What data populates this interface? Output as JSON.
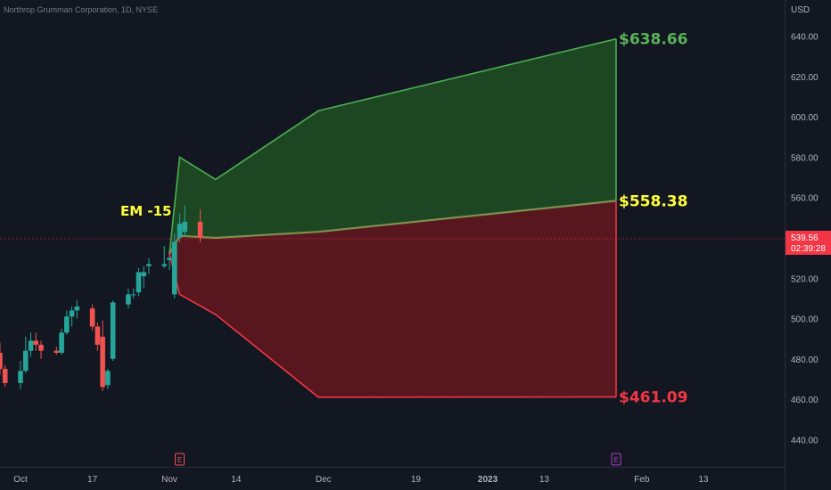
{
  "header": {
    "title": "Northrop Grumman Corporation, 1D, NYSE"
  },
  "chart_data": {
    "type": "candlestick",
    "title": "Northrop Grumman Corporation, 1D, NYSE",
    "currency": "USD",
    "ylim": [
      430,
      652
    ],
    "y_ticks": [
      "440.00",
      "460.00",
      "480.00",
      "500.00",
      "520.00",
      "540.00",
      "560.00",
      "580.00",
      "600.00",
      "620.00",
      "640.00"
    ],
    "x_ticks": [
      {
        "label": "Oct",
        "date": "2022-10-03"
      },
      {
        "label": "17",
        "date": "2022-10-17"
      },
      {
        "label": "Nov",
        "date": "2022-11-01"
      },
      {
        "label": "14",
        "date": "2022-11-14"
      },
      {
        "label": "Dec",
        "date": "2022-12-01"
      },
      {
        "label": "19",
        "date": "2022-12-19"
      },
      {
        "label": "2023",
        "date": "2023-01-02"
      },
      {
        "label": "13",
        "date": "2023-01-13"
      },
      {
        "label": "Feb",
        "date": "2023-02-01"
      },
      {
        "label": "13",
        "date": "2023-02-13"
      }
    ],
    "candles": [
      {
        "date": "2022-09-29",
        "o": 483,
        "h": 488,
        "l": 472,
        "c": 475
      },
      {
        "date": "2022-09-30",
        "o": 475,
        "h": 477,
        "l": 466,
        "c": 468
      },
      {
        "date": "2022-10-03",
        "o": 468,
        "h": 479,
        "l": 465,
        "c": 474
      },
      {
        "date": "2022-10-04",
        "o": 474,
        "h": 491,
        "l": 473,
        "c": 484
      },
      {
        "date": "2022-10-05",
        "o": 484,
        "h": 493,
        "l": 481,
        "c": 489
      },
      {
        "date": "2022-10-06",
        "o": 489,
        "h": 493,
        "l": 484,
        "c": 487
      },
      {
        "date": "2022-10-07",
        "o": 487,
        "h": 489,
        "l": 480,
        "c": 484
      },
      {
        "date": "2022-10-10",
        "o": 484,
        "h": 486,
        "l": 482,
        "c": 483
      },
      {
        "date": "2022-10-11",
        "o": 483,
        "h": 495,
        "l": 482,
        "c": 493
      },
      {
        "date": "2022-10-12",
        "o": 493,
        "h": 504,
        "l": 492,
        "c": 501
      },
      {
        "date": "2022-10-13",
        "o": 501,
        "h": 506,
        "l": 496,
        "c": 504
      },
      {
        "date": "2022-10-14",
        "o": 504,
        "h": 509,
        "l": 500,
        "c": 506
      },
      {
        "date": "2022-10-17",
        "o": 505,
        "h": 507,
        "l": 494,
        "c": 496
      },
      {
        "date": "2022-10-18",
        "o": 496,
        "h": 498,
        "l": 484,
        "c": 487
      },
      {
        "date": "2022-10-19",
        "o": 491,
        "h": 499,
        "l": 464,
        "c": 466
      },
      {
        "date": "2022-10-20",
        "o": 467,
        "h": 475,
        "l": 465,
        "c": 474
      },
      {
        "date": "2022-10-21",
        "o": 480,
        "h": 509,
        "l": 479,
        "c": 508
      },
      {
        "date": "2022-10-24",
        "o": 507,
        "h": 515,
        "l": 505,
        "c": 512
      },
      {
        "date": "2022-10-25",
        "o": 512,
        "h": 515,
        "l": 510,
        "c": 512
      },
      {
        "date": "2022-10-26",
        "o": 513,
        "h": 525,
        "l": 511,
        "c": 523
      },
      {
        "date": "2022-10-27",
        "o": 521,
        "h": 526,
        "l": 515,
        "c": 523
      },
      {
        "date": "2022-10-28",
        "o": 526,
        "h": 530,
        "l": 522,
        "c": 527
      },
      {
        "date": "2022-10-31",
        "o": 526,
        "h": 536,
        "l": 525,
        "c": 527
      },
      {
        "date": "2022-11-01",
        "o": 529,
        "h": 531,
        "l": 524,
        "c": 530
      },
      {
        "date": "2022-11-02",
        "o": 512,
        "h": 542,
        "l": 510,
        "c": 538
      },
      {
        "date": "2022-11-03",
        "o": 540,
        "h": 552,
        "l": 538,
        "c": 547
      },
      {
        "date": "2022-11-04",
        "o": 543,
        "h": 556,
        "l": 541,
        "c": 548
      },
      {
        "date": "2022-11-07",
        "o": 548,
        "h": 554,
        "l": 538,
        "c": 540
      }
    ],
    "expected_move": {
      "label": "EM -15",
      "upper": [
        {
          "date": "2022-11-01",
          "y": 532
        },
        {
          "date": "2022-11-03",
          "y": 580
        },
        {
          "date": "2022-11-10",
          "y": 569
        },
        {
          "date": "2022-11-30",
          "y": 603
        },
        {
          "date": "2023-01-27",
          "y": 638.66
        }
      ],
      "mid": [
        {
          "date": "2022-11-01",
          "y": 532
        },
        {
          "date": "2022-11-03",
          "y": 541
        },
        {
          "date": "2022-11-10",
          "y": 540
        },
        {
          "date": "2022-11-30",
          "y": 543
        },
        {
          "date": "2023-01-27",
          "y": 558.38
        }
      ],
      "lower": [
        {
          "date": "2022-11-01",
          "y": 532
        },
        {
          "date": "2022-11-03",
          "y": 512
        },
        {
          "date": "2022-11-10",
          "y": 502
        },
        {
          "date": "2022-11-30",
          "y": 461
        },
        {
          "date": "2023-01-27",
          "y": 461.09
        }
      ],
      "upper_label": "$638.66",
      "mid_label": "$558.38",
      "lower_label": "$461.09"
    },
    "last_price": {
      "value": 539.56,
      "label": "539.56",
      "countdown": "02:39:28"
    },
    "events": [
      {
        "date": "2022-11-03",
        "label": "E"
      },
      {
        "date": "2023-01-27",
        "label": "E"
      }
    ],
    "colors": {
      "background": "#131722",
      "up": "#26a69a",
      "down": "#ef5350",
      "upper_fill": "#1d4a24",
      "lower_fill": "#5c171f",
      "upper_line": "#4caf50",
      "lower_line": "#f23645",
      "mid_line": "#7f8f4f",
      "upper_label": "#5ab35a",
      "mid_label": "#ffff3b",
      "lower_label": "#f23645",
      "em_label": "#ffff3b",
      "price_tag": "#f23645"
    }
  }
}
